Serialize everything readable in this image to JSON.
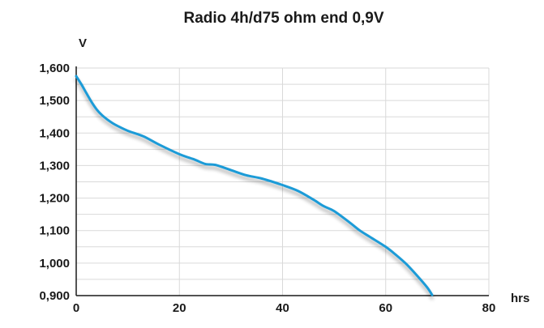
{
  "chart_data": {
    "type": "line",
    "title": "Radio 4h/d75 ohm end 0,9V",
    "ylabel": "V",
    "xlabel": "hrs",
    "xlim": [
      0,
      80
    ],
    "ylim": [
      0.9,
      1.6
    ],
    "x_ticks": [
      0,
      20,
      40,
      60,
      80
    ],
    "x_tick_labels": [
      "0",
      "20",
      "40",
      "60",
      "80"
    ],
    "y_ticks": [
      0.9,
      1.0,
      1.1,
      1.2,
      1.3,
      1.4,
      1.5,
      1.6
    ],
    "y_tick_labels": [
      "0,900",
      "1,000",
      "1,100",
      "1,200",
      "1,300",
      "1,400",
      "1,500",
      "1,600"
    ],
    "grid": true,
    "series_color": "#1a9bd7",
    "series": [
      {
        "x": [
          0,
          1,
          2,
          3,
          4,
          5,
          6,
          7,
          8,
          10,
          13,
          16,
          20,
          23,
          25,
          27,
          30,
          33,
          36,
          40,
          43,
          46,
          48,
          50,
          53,
          55,
          57,
          60,
          62,
          64,
          66,
          68,
          69
        ],
        "y": [
          1.575,
          1.55,
          1.522,
          1.495,
          1.472,
          1.455,
          1.442,
          1.431,
          1.422,
          1.407,
          1.39,
          1.365,
          1.335,
          1.318,
          1.305,
          1.302,
          1.286,
          1.27,
          1.26,
          1.24,
          1.222,
          1.195,
          1.175,
          1.16,
          1.125,
          1.1,
          1.08,
          1.05,
          1.025,
          0.997,
          0.963,
          0.926,
          0.902
        ]
      }
    ]
  }
}
